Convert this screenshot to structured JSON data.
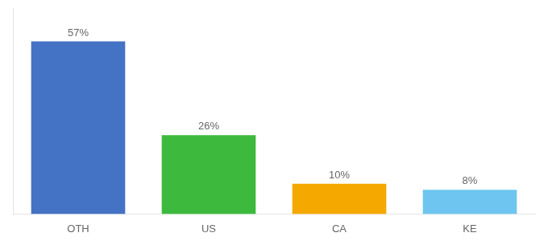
{
  "chart_data": {
    "type": "bar",
    "categories": [
      "OTH",
      "US",
      "CA",
      "KE"
    ],
    "values": [
      57,
      26,
      10,
      8
    ],
    "value_labels": [
      "57%",
      "26%",
      "10%",
      "8%"
    ],
    "colors": [
      "#4472c4",
      "#3dba3d",
      "#f5a800",
      "#6ec6f0"
    ],
    "ylim": [
      0,
      68
    ],
    "data_labels": true,
    "tick_labels": "x",
    "grid": false
  }
}
